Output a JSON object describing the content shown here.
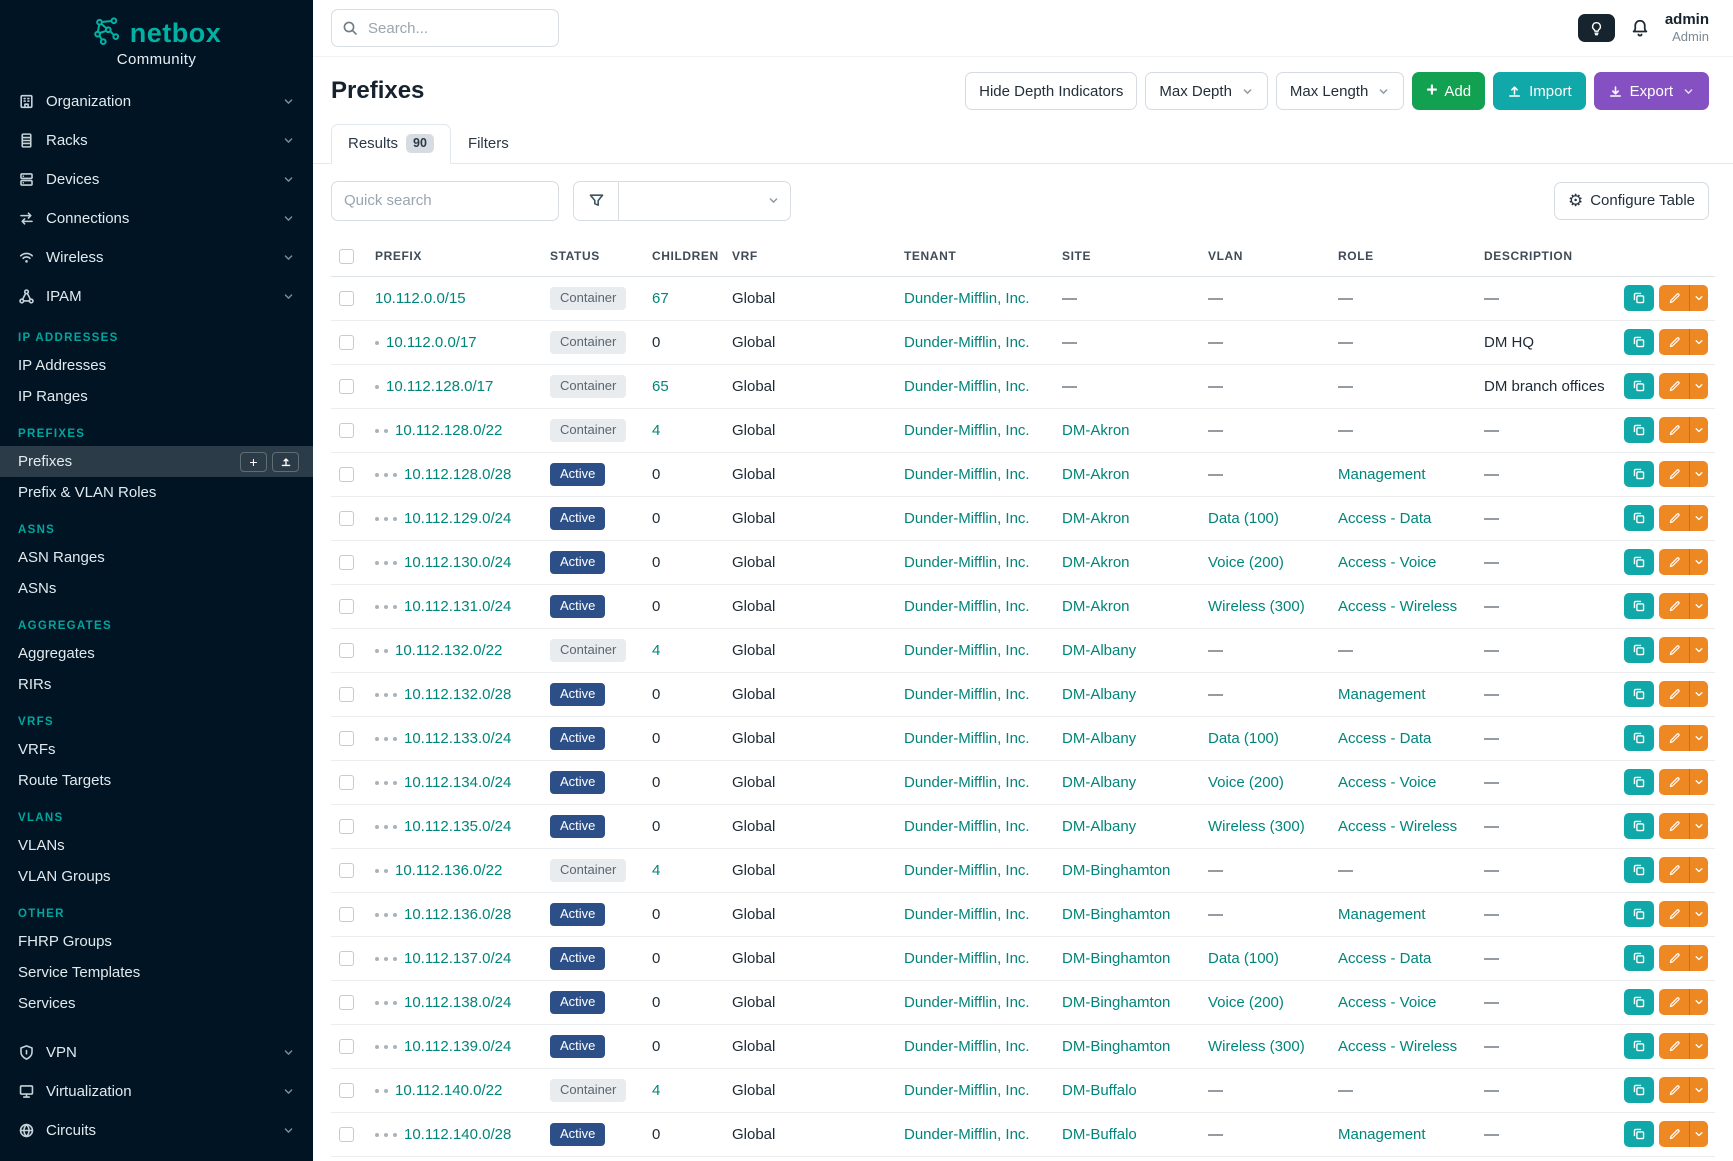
{
  "colors": {
    "sidebar_bg": "#001423",
    "brand_teal": "#00b2a3",
    "accent_link": "#00857a",
    "section_heading": "#00a79d",
    "badge_active_bg": "#2d4f87",
    "badge_container_bg": "#e8ecef",
    "add_green": "#12a150",
    "import_teal": "#10a8a8",
    "export_purple": "#8550c2",
    "edit_orange": "#ee8822"
  },
  "brand": {
    "name": "netbox",
    "subtitle": "Community"
  },
  "topbar": {
    "search_placeholder": "Search...",
    "user_name": "admin",
    "user_role": "Admin"
  },
  "sidebar": {
    "groups_top": [
      {
        "label": "Organization",
        "icon": "building-icon"
      },
      {
        "label": "Racks",
        "icon": "rack-icon"
      },
      {
        "label": "Devices",
        "icon": "devices-icon"
      },
      {
        "label": "Connections",
        "icon": "connections-icon"
      },
      {
        "label": "Wireless",
        "icon": "wireless-icon"
      },
      {
        "label": "IPAM",
        "icon": "ipam-icon"
      }
    ],
    "ipam_sections": [
      {
        "heading": "IP ADDRESSES",
        "items": [
          "IP Addresses",
          "IP Ranges"
        ]
      },
      {
        "heading": "PREFIXES",
        "items": [
          "Prefixes",
          "Prefix & VLAN Roles"
        ],
        "active_item": "Prefixes"
      },
      {
        "heading": "ASNS",
        "items": [
          "ASN Ranges",
          "ASNs"
        ]
      },
      {
        "heading": "AGGREGATES",
        "items": [
          "Aggregates",
          "RIRs"
        ]
      },
      {
        "heading": "VRFS",
        "items": [
          "VRFs",
          "Route Targets"
        ]
      },
      {
        "heading": "VLANS",
        "items": [
          "VLANs",
          "VLAN Groups"
        ]
      },
      {
        "heading": "OTHER",
        "items": [
          "FHRP Groups",
          "Service Templates",
          "Services"
        ]
      }
    ],
    "groups_bottom": [
      {
        "label": "VPN",
        "icon": "vpn-icon"
      },
      {
        "label": "Virtualization",
        "icon": "virtualization-icon"
      },
      {
        "label": "Circuits",
        "icon": "circuits-icon"
      }
    ]
  },
  "page": {
    "title": "Prefixes",
    "toolbar": {
      "hide_depth": "Hide Depth Indicators",
      "max_depth": "Max Depth",
      "max_length": "Max Length",
      "add": "Add",
      "import": "Import",
      "export": "Export"
    },
    "tabs": [
      {
        "label": "Results",
        "badge": "90",
        "active": true
      },
      {
        "label": "Filters",
        "badge": "",
        "active": false
      }
    ],
    "quick_search_placeholder": "Quick search",
    "configure_table": "Configure Table"
  },
  "table": {
    "columns": [
      "PREFIX",
      "STATUS",
      "CHILDREN",
      "VRF",
      "TENANT",
      "SITE",
      "VLAN",
      "ROLE",
      "DESCRIPTION"
    ],
    "rows": [
      {
        "depth": 0,
        "prefix": "10.112.0.0/15",
        "status": "Container",
        "children": "67",
        "vrf": "Global",
        "tenant": "Dunder-Mifflin, Inc.",
        "site": "—",
        "vlan": "—",
        "role": "—",
        "description": "—"
      },
      {
        "depth": 1,
        "prefix": "10.112.0.0/17",
        "status": "Container",
        "children": "0",
        "vrf": "Global",
        "tenant": "Dunder-Mifflin, Inc.",
        "site": "—",
        "vlan": "—",
        "role": "—",
        "description": "DM HQ"
      },
      {
        "depth": 1,
        "prefix": "10.112.128.0/17",
        "status": "Container",
        "children": "65",
        "vrf": "Global",
        "tenant": "Dunder-Mifflin, Inc.",
        "site": "—",
        "vlan": "—",
        "role": "—",
        "description": "DM branch offices"
      },
      {
        "depth": 2,
        "prefix": "10.112.128.0/22",
        "status": "Container",
        "children": "4",
        "vrf": "Global",
        "tenant": "Dunder-Mifflin, Inc.",
        "site": "DM-Akron",
        "vlan": "—",
        "role": "—",
        "description": "—"
      },
      {
        "depth": 3,
        "prefix": "10.112.128.0/28",
        "status": "Active",
        "children": "0",
        "vrf": "Global",
        "tenant": "Dunder-Mifflin, Inc.",
        "site": "DM-Akron",
        "vlan": "—",
        "role": "Management",
        "description": "—"
      },
      {
        "depth": 3,
        "prefix": "10.112.129.0/24",
        "status": "Active",
        "children": "0",
        "vrf": "Global",
        "tenant": "Dunder-Mifflin, Inc.",
        "site": "DM-Akron",
        "vlan": "Data (100)",
        "role": "Access - Data",
        "description": "—"
      },
      {
        "depth": 3,
        "prefix": "10.112.130.0/24",
        "status": "Active",
        "children": "0",
        "vrf": "Global",
        "tenant": "Dunder-Mifflin, Inc.",
        "site": "DM-Akron",
        "vlan": "Voice (200)",
        "role": "Access - Voice",
        "description": "—"
      },
      {
        "depth": 3,
        "prefix": "10.112.131.0/24",
        "status": "Active",
        "children": "0",
        "vrf": "Global",
        "tenant": "Dunder-Mifflin, Inc.",
        "site": "DM-Akron",
        "vlan": "Wireless (300)",
        "role": "Access - Wireless",
        "description": "—"
      },
      {
        "depth": 2,
        "prefix": "10.112.132.0/22",
        "status": "Container",
        "children": "4",
        "vrf": "Global",
        "tenant": "Dunder-Mifflin, Inc.",
        "site": "DM-Albany",
        "vlan": "—",
        "role": "—",
        "description": "—"
      },
      {
        "depth": 3,
        "prefix": "10.112.132.0/28",
        "status": "Active",
        "children": "0",
        "vrf": "Global",
        "tenant": "Dunder-Mifflin, Inc.",
        "site": "DM-Albany",
        "vlan": "—",
        "role": "Management",
        "description": "—"
      },
      {
        "depth": 3,
        "prefix": "10.112.133.0/24",
        "status": "Active",
        "children": "0",
        "vrf": "Global",
        "tenant": "Dunder-Mifflin, Inc.",
        "site": "DM-Albany",
        "vlan": "Data (100)",
        "role": "Access - Data",
        "description": "—"
      },
      {
        "depth": 3,
        "prefix": "10.112.134.0/24",
        "status": "Active",
        "children": "0",
        "vrf": "Global",
        "tenant": "Dunder-Mifflin, Inc.",
        "site": "DM-Albany",
        "vlan": "Voice (200)",
        "role": "Access - Voice",
        "description": "—"
      },
      {
        "depth": 3,
        "prefix": "10.112.135.0/24",
        "status": "Active",
        "children": "0",
        "vrf": "Global",
        "tenant": "Dunder-Mifflin, Inc.",
        "site": "DM-Albany",
        "vlan": "Wireless (300)",
        "role": "Access - Wireless",
        "description": "—"
      },
      {
        "depth": 2,
        "prefix": "10.112.136.0/22",
        "status": "Container",
        "children": "4",
        "vrf": "Global",
        "tenant": "Dunder-Mifflin, Inc.",
        "site": "DM-Binghamton",
        "vlan": "—",
        "role": "—",
        "description": "—"
      },
      {
        "depth": 3,
        "prefix": "10.112.136.0/28",
        "status": "Active",
        "children": "0",
        "vrf": "Global",
        "tenant": "Dunder-Mifflin, Inc.",
        "site": "DM-Binghamton",
        "vlan": "—",
        "role": "Management",
        "description": "—"
      },
      {
        "depth": 3,
        "prefix": "10.112.137.0/24",
        "status": "Active",
        "children": "0",
        "vrf": "Global",
        "tenant": "Dunder-Mifflin, Inc.",
        "site": "DM-Binghamton",
        "vlan": "Data (100)",
        "role": "Access - Data",
        "description": "—"
      },
      {
        "depth": 3,
        "prefix": "10.112.138.0/24",
        "status": "Active",
        "children": "0",
        "vrf": "Global",
        "tenant": "Dunder-Mifflin, Inc.",
        "site": "DM-Binghamton",
        "vlan": "Voice (200)",
        "role": "Access - Voice",
        "description": "—"
      },
      {
        "depth": 3,
        "prefix": "10.112.139.0/24",
        "status": "Active",
        "children": "0",
        "vrf": "Global",
        "tenant": "Dunder-Mifflin, Inc.",
        "site": "DM-Binghamton",
        "vlan": "Wireless (300)",
        "role": "Access - Wireless",
        "description": "—"
      },
      {
        "depth": 2,
        "prefix": "10.112.140.0/22",
        "status": "Container",
        "children": "4",
        "vrf": "Global",
        "tenant": "Dunder-Mifflin, Inc.",
        "site": "DM-Buffalo",
        "vlan": "—",
        "role": "—",
        "description": "—"
      },
      {
        "depth": 3,
        "prefix": "10.112.140.0/28",
        "status": "Active",
        "children": "0",
        "vrf": "Global",
        "tenant": "Dunder-Mifflin, Inc.",
        "site": "DM-Buffalo",
        "vlan": "—",
        "role": "Management",
        "description": "—"
      }
    ]
  }
}
